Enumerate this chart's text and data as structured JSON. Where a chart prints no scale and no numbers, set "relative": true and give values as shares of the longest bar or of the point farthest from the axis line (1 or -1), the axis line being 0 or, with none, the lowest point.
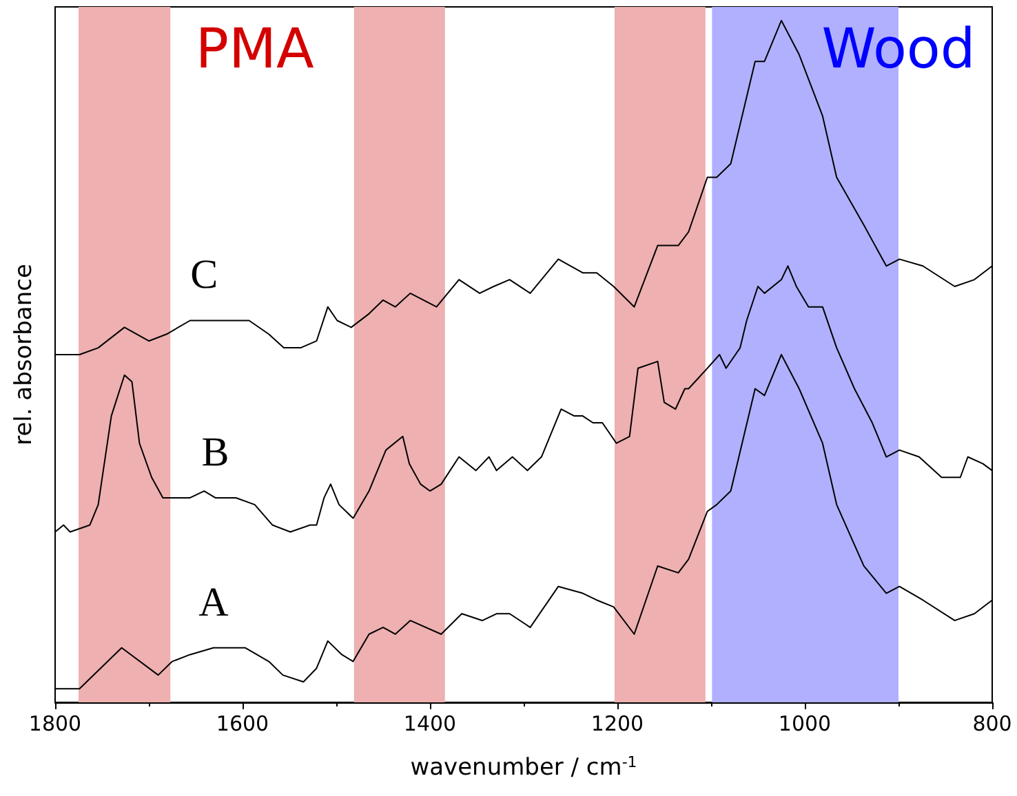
{
  "chart_data": {
    "type": "line",
    "relative": true,
    "xlabel": "wavenumber / cm$^{-1}$",
    "ylabel": "rel. absorbance",
    "xlim": [
      1800,
      800
    ],
    "xticks": [
      1800,
      1600,
      1400,
      1200,
      1000,
      800
    ],
    "grid": false,
    "legend": false,
    "marker": "none",
    "line_style": "solid",
    "annotations": [
      "PMA",
      "Wood"
    ],
    "bands": [
      {
        "axis": "x",
        "from": 1775,
        "to": 1677,
        "color": "#eeb0b0"
      },
      {
        "axis": "x",
        "from": 1481,
        "to": 1384,
        "color": "#eeb0b0"
      },
      {
        "axis": "x",
        "from": 1203,
        "to": 1106,
        "color": "#eeb0b0"
      },
      {
        "axis": "x",
        "from": 1099,
        "to": 900,
        "color": "#b0b0ff"
      }
    ],
    "series": [
      {
        "name": "A",
        "color": "#000000",
        "x": [
          1800,
          1774,
          1729,
          1690,
          1675,
          1656,
          1631,
          1597,
          1572,
          1557,
          1535,
          1521,
          1509,
          1494,
          1482,
          1465,
          1450,
          1437,
          1421,
          1388,
          1366,
          1344,
          1329,
          1315,
          1293,
          1263,
          1237,
          1222,
          1204,
          1182,
          1157,
          1135,
          1124,
          1104,
          1094,
          1079,
          1053,
          1043,
          1025,
          1006,
          981,
          966,
          937,
          913,
          899,
          874,
          840,
          819,
          800
        ],
        "values": [
          0.02,
          0.02,
          0.08,
          0.04,
          0.06,
          0.07,
          0.08,
          0.08,
          0.06,
          0.04,
          0.03,
          0.05,
          0.09,
          0.07,
          0.06,
          0.1,
          0.11,
          0.1,
          0.12,
          0.1,
          0.13,
          0.12,
          0.13,
          0.13,
          0.11,
          0.17,
          0.16,
          0.15,
          0.14,
          0.1,
          0.2,
          0.19,
          0.21,
          0.28,
          0.29,
          0.31,
          0.46,
          0.45,
          0.51,
          0.46,
          0.38,
          0.29,
          0.2,
          0.16,
          0.17,
          0.15,
          0.12,
          0.13,
          0.15
        ]
      },
      {
        "name": "B",
        "color": "#000000",
        "x": [
          1800,
          1791,
          1784,
          1763,
          1754,
          1740,
          1726,
          1718,
          1710,
          1697,
          1685,
          1675,
          1656,
          1641,
          1629,
          1607,
          1587,
          1568,
          1549,
          1528,
          1521,
          1513,
          1506,
          1497,
          1482,
          1465,
          1462,
          1447,
          1429,
          1422,
          1410,
          1400,
          1388,
          1369,
          1351,
          1337,
          1329,
          1312,
          1296,
          1281,
          1260,
          1246,
          1237,
          1226,
          1216,
          1201,
          1187,
          1178,
          1157,
          1150,
          1138,
          1128,
          1124,
          1104,
          1091,
          1084,
          1069,
          1062,
          1050,
          1043,
          1025,
          1018,
          1009,
          996,
          981,
          966,
          947,
          928,
          913,
          899,
          878,
          854,
          834,
          826,
          810,
          800
        ],
        "values": [
          0.25,
          0.26,
          0.25,
          0.26,
          0.29,
          0.42,
          0.48,
          0.47,
          0.38,
          0.33,
          0.3,
          0.3,
          0.3,
          0.31,
          0.3,
          0.3,
          0.29,
          0.26,
          0.25,
          0.26,
          0.26,
          0.3,
          0.32,
          0.29,
          0.27,
          0.31,
          0.32,
          0.37,
          0.39,
          0.35,
          0.32,
          0.31,
          0.32,
          0.36,
          0.34,
          0.36,
          0.34,
          0.36,
          0.34,
          0.36,
          0.43,
          0.42,
          0.42,
          0.41,
          0.41,
          0.38,
          0.39,
          0.49,
          0.5,
          0.44,
          0.43,
          0.46,
          0.46,
          0.49,
          0.51,
          0.49,
          0.52,
          0.56,
          0.61,
          0.6,
          0.62,
          0.64,
          0.61,
          0.58,
          0.58,
          0.52,
          0.46,
          0.41,
          0.36,
          0.37,
          0.36,
          0.33,
          0.33,
          0.36,
          0.35,
          0.34
        ]
      },
      {
        "name": "C",
        "color": "#000000",
        "x": [
          1800,
          1774,
          1754,
          1726,
          1700,
          1681,
          1656,
          1641,
          1593,
          1572,
          1556,
          1538,
          1521,
          1509,
          1499,
          1484,
          1465,
          1450,
          1437,
          1421,
          1393,
          1369,
          1347,
          1332,
          1315,
          1293,
          1263,
          1237,
          1222,
          1204,
          1182,
          1157,
          1135,
          1124,
          1104,
          1094,
          1079,
          1053,
          1043,
          1025,
          1006,
          981,
          966,
          937,
          913,
          899,
          874,
          840,
          819,
          800
        ],
        "values": [
          0.51,
          0.51,
          0.52,
          0.55,
          0.53,
          0.54,
          0.56,
          0.56,
          0.56,
          0.54,
          0.52,
          0.52,
          0.53,
          0.58,
          0.56,
          0.55,
          0.57,
          0.59,
          0.58,
          0.6,
          0.58,
          0.62,
          0.6,
          0.61,
          0.62,
          0.6,
          0.65,
          0.63,
          0.63,
          0.61,
          0.58,
          0.67,
          0.67,
          0.69,
          0.77,
          0.77,
          0.79,
          0.94,
          0.94,
          1,
          0.95,
          0.86,
          0.77,
          0.7,
          0.64,
          0.65,
          0.64,
          0.61,
          0.62,
          0.64
        ]
      }
    ]
  }
}
